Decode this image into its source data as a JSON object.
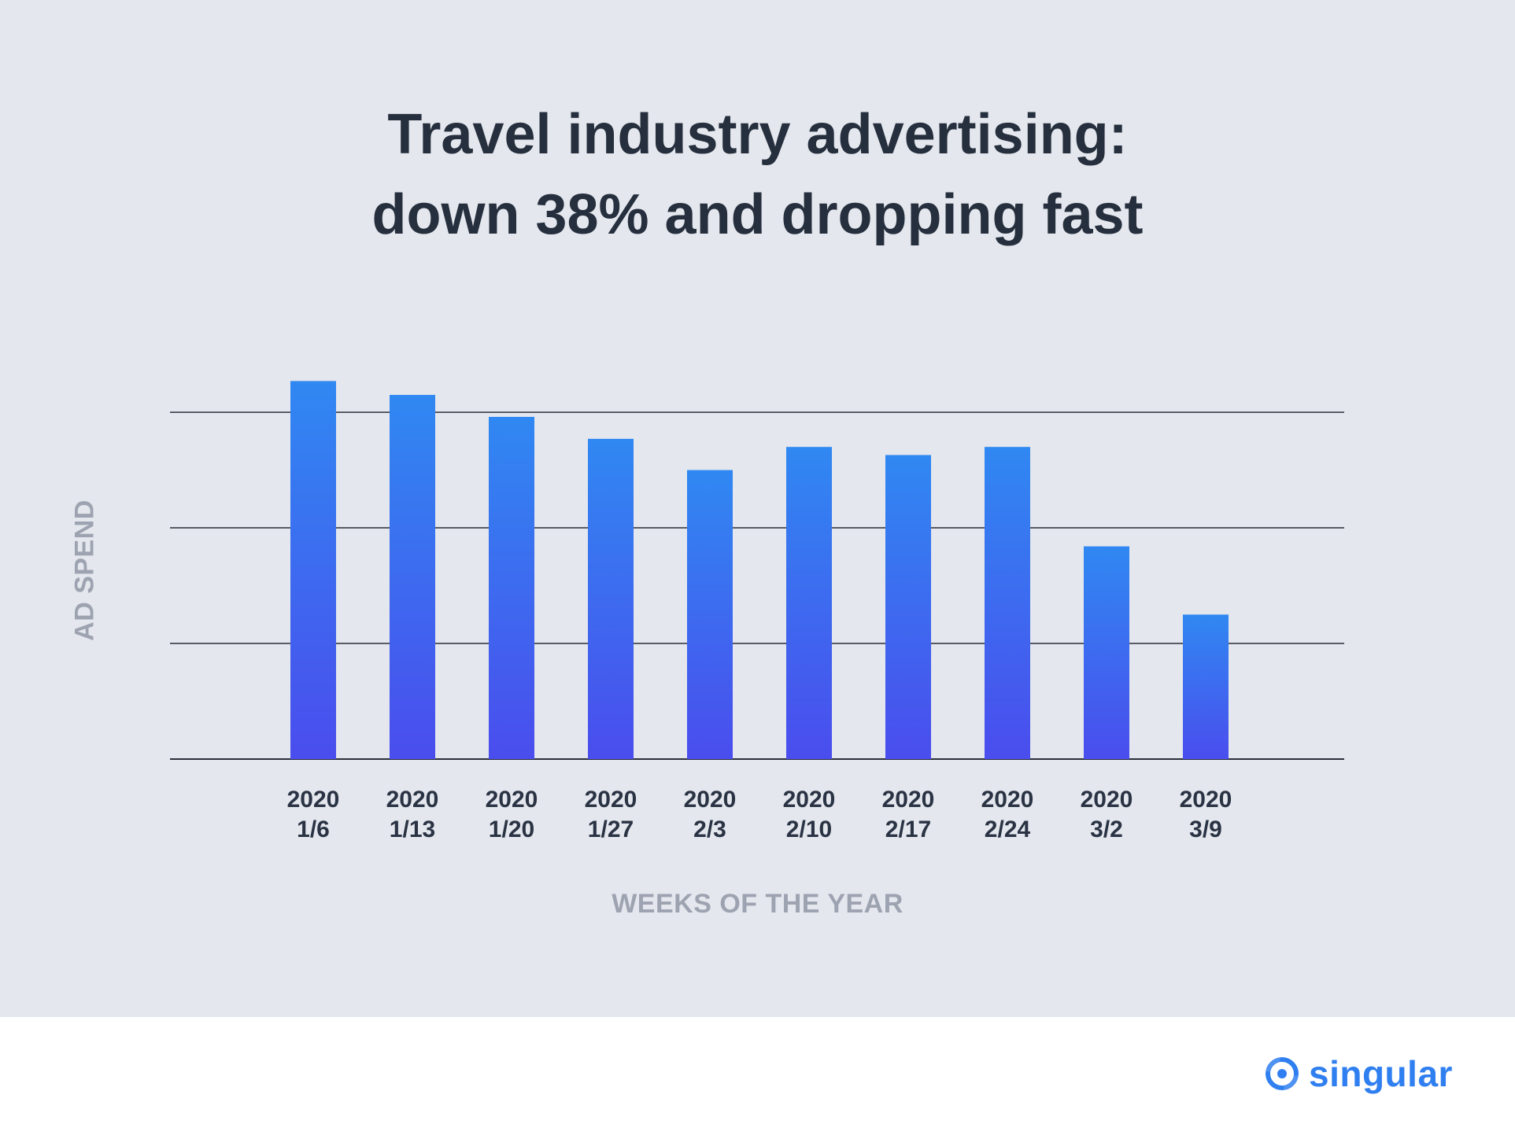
{
  "title": {
    "line1": "Travel industry advertising:",
    "line2": "down 38% and dropping fast"
  },
  "brand": {
    "logo_text": "singular",
    "logo_icon": "singular-swirl-icon",
    "color": "#2f7ff0"
  },
  "colors": {
    "background": "#e4e7ed",
    "bar_top": "#3088f2",
    "bar_bottom": "#4a4ded",
    "title": "#262f3d",
    "axis_label": "#9ea3b1",
    "tick_label": "#2a3344",
    "gridline": "#2a2f3a"
  },
  "chart_data": {
    "type": "bar",
    "title": "Travel industry advertising: down 38% and dropping fast",
    "xlabel": "WEEKS OF THE YEAR",
    "ylabel": "AD SPEND",
    "categories": [
      "2020 1/6",
      "2020 1/13",
      "2020 1/20",
      "2020 1/27",
      "2020 2/3",
      "2020 2/10",
      "2020 2/17",
      "2020 2/24",
      "2020 3/2",
      "2020 3/9"
    ],
    "category_lines": [
      [
        "2020",
        "1/6"
      ],
      [
        "2020",
        "1/13"
      ],
      [
        "2020",
        "1/20"
      ],
      [
        "2020",
        "1/27"
      ],
      [
        "2020",
        "2/3"
      ],
      [
        "2020",
        "2/10"
      ],
      [
        "2020",
        "2/17"
      ],
      [
        "2020",
        "2/24"
      ],
      [
        "2020",
        "3/2"
      ],
      [
        "2020",
        "3/9"
      ]
    ],
    "values": [
      3.27,
      3.15,
      2.96,
      2.77,
      2.5,
      2.7,
      2.63,
      2.7,
      1.84,
      1.25
    ],
    "ylim": [
      0,
      3.3
    ],
    "gridlines": [
      1,
      2,
      3
    ],
    "grid": true,
    "y_tick_labels": false,
    "legend": false
  }
}
